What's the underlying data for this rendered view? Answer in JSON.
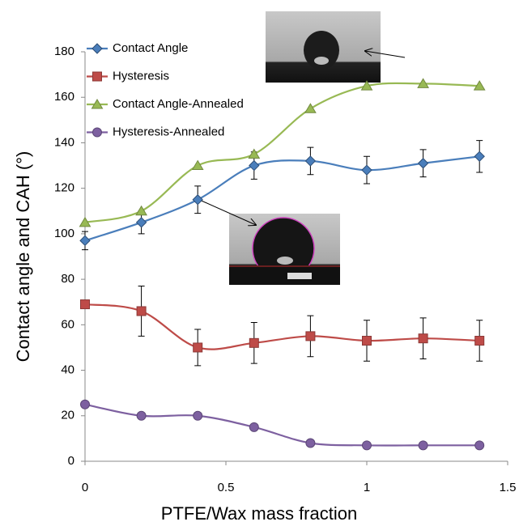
{
  "chart_data": {
    "type": "line",
    "x_label": "PTFE/Wax mass fraction",
    "y_label": "Contact angle and CAH (°)",
    "x": [
      0,
      0.2,
      0.4,
      0.6,
      0.8,
      1,
      1.2,
      1.4
    ],
    "series": [
      {
        "name": "Contact Angle",
        "color": "#4a7ebb",
        "marker": "diamond",
        "values": [
          97,
          105,
          115,
          130,
          132,
          128,
          131,
          134
        ],
        "errors": [
          4,
          5,
          6,
          6,
          6,
          6,
          6,
          7
        ]
      },
      {
        "name": "Hysteresis",
        "color": "#be4b48",
        "marker": "square",
        "values": [
          69,
          66,
          50,
          52,
          55,
          53,
          54,
          53
        ],
        "errors": [
          1,
          11,
          8,
          9,
          9,
          9,
          9,
          9
        ]
      },
      {
        "name": "Contact Angle-Annealed",
        "color": "#98b954",
        "marker": "triangle",
        "values": [
          105,
          110,
          130,
          135,
          155,
          165,
          166,
          165
        ]
      },
      {
        "name": "Hysteresis-Annealed",
        "color": "#7d60a0",
        "marker": "circle",
        "values": [
          25,
          20,
          20,
          15,
          8,
          7,
          7,
          7
        ]
      }
    ],
    "xlim": [
      0,
      1.5
    ],
    "xticks": [
      0,
      0.5,
      1,
      1.5
    ],
    "ylim": [
      0,
      180
    ],
    "yticks": [
      0,
      20,
      40,
      60,
      80,
      100,
      120,
      140,
      160,
      180
    ],
    "grid": false,
    "legend": "top-left"
  }
}
